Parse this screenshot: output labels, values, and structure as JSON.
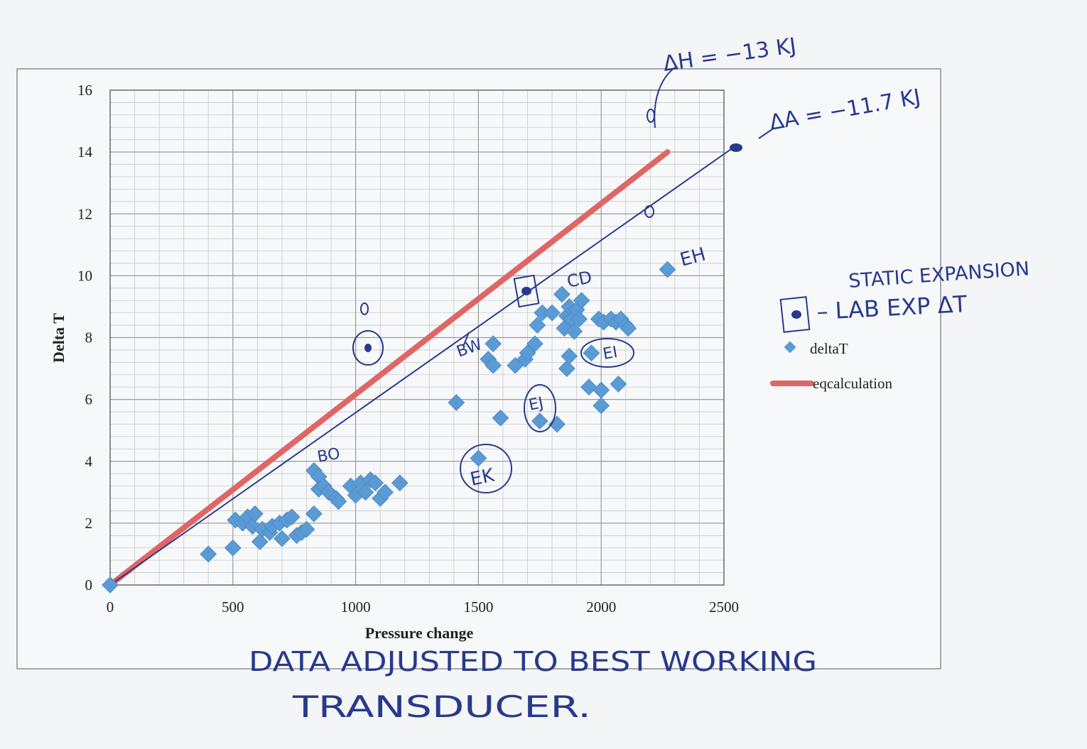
{
  "chart_data": {
    "type": "scatter",
    "xlabel": "Pressure change",
    "ylabel": "Delta T",
    "xlim": [
      0,
      2500
    ],
    "ylim": [
      0,
      16
    ],
    "x_ticks": [
      0,
      500,
      1000,
      1500,
      2000,
      2500
    ],
    "y_ticks": [
      0,
      2,
      4,
      6,
      8,
      10,
      12,
      14,
      16
    ],
    "grid": true,
    "legend_position": "right",
    "legend": [
      {
        "label": "deltaT",
        "marker": "diamond"
      },
      {
        "label": "eqcalculation",
        "marker": "line"
      }
    ],
    "series": [
      {
        "name": "deltaT",
        "type": "scatter",
        "points": [
          [
            0,
            0
          ],
          [
            400,
            1.0
          ],
          [
            500,
            1.2
          ],
          [
            510,
            2.1
          ],
          [
            540,
            2.0
          ],
          [
            560,
            2.2
          ],
          [
            580,
            1.9
          ],
          [
            590,
            2.3
          ],
          [
            610,
            1.4
          ],
          [
            620,
            1.8
          ],
          [
            650,
            1.7
          ],
          [
            660,
            1.9
          ],
          [
            690,
            2.0
          ],
          [
            700,
            1.5
          ],
          [
            720,
            2.1
          ],
          [
            740,
            2.2
          ],
          [
            760,
            1.6
          ],
          [
            780,
            1.7
          ],
          [
            800,
            1.8
          ],
          [
            830,
            2.3
          ],
          [
            830,
            3.7
          ],
          [
            850,
            3.5
          ],
          [
            850,
            3.1
          ],
          [
            870,
            3.2
          ],
          [
            890,
            3.0
          ],
          [
            920,
            2.8
          ],
          [
            930,
            2.7
          ],
          [
            980,
            3.2
          ],
          [
            1000,
            2.9
          ],
          [
            1020,
            3.3
          ],
          [
            1040,
            3.0
          ],
          [
            1060,
            3.4
          ],
          [
            1080,
            3.3
          ],
          [
            1100,
            2.8
          ],
          [
            1120,
            3.0
          ],
          [
            1180,
            3.3
          ],
          [
            1410,
            5.9
          ],
          [
            1500,
            4.1
          ],
          [
            1540,
            7.3
          ],
          [
            1560,
            7.8
          ],
          [
            1560,
            7.1
          ],
          [
            1590,
            5.4
          ],
          [
            1650,
            7.1
          ],
          [
            1690,
            7.3
          ],
          [
            1700,
            7.5
          ],
          [
            1730,
            7.8
          ],
          [
            1740,
            8.4
          ],
          [
            1750,
            5.3
          ],
          [
            1760,
            8.8
          ],
          [
            1800,
            8.8
          ],
          [
            1820,
            5.2
          ],
          [
            1840,
            9.4
          ],
          [
            1850,
            8.3
          ],
          [
            1860,
            7.0
          ],
          [
            1860,
            8.7
          ],
          [
            1870,
            7.4
          ],
          [
            1870,
            9.0
          ],
          [
            1880,
            8.6
          ],
          [
            1890,
            8.2
          ],
          [
            1900,
            8.9
          ],
          [
            1910,
            8.6
          ],
          [
            1920,
            9.2
          ],
          [
            1950,
            6.4
          ],
          [
            1960,
            7.5
          ],
          [
            1990,
            8.6
          ],
          [
            2000,
            6.3
          ],
          [
            2000,
            5.8
          ],
          [
            2010,
            8.5
          ],
          [
            2040,
            8.6
          ],
          [
            2060,
            8.5
          ],
          [
            2070,
            6.5
          ],
          [
            2080,
            8.6
          ],
          [
            2100,
            8.4
          ],
          [
            2110,
            8.3
          ],
          [
            2270,
            10.2
          ]
        ]
      },
      {
        "name": "eqcalculation",
        "type": "line",
        "points": [
          [
            0,
            0
          ],
          [
            2270,
            14.0
          ]
        ]
      },
      {
        "name": "",
        "type": "line",
        "points": [
          [
            0,
            0
          ],
          [
            2530,
            14.1
          ]
        ]
      }
    ],
    "annotations": [
      {
        "text": "ΔH = −13 KJ",
        "x": 2230,
        "y": 15.3
      },
      {
        "text": "ΔA = −11.7 KJ",
        "x": 2620,
        "y": 14.6
      },
      {
        "text": "EH",
        "x": 2340,
        "y": 10.5
      },
      {
        "text": "CD",
        "x": 1960,
        "y": 9.7
      },
      {
        "text": "BW",
        "x": 1480,
        "y": 7.5
      },
      {
        "text": "EI",
        "x": 2060,
        "y": 7.4
      },
      {
        "text": "EJ",
        "x": 1740,
        "y": 5.9
      },
      {
        "text": "EK",
        "x": 1530,
        "y": 3.4
      },
      {
        "text": "BO",
        "x": 900,
        "y": 4.1
      },
      {
        "text": "0",
        "x": 1030,
        "y": 8.9
      },
      {
        "text": "STATIC EXPANSION",
        "x": 0,
        "y": 0
      },
      {
        "text": "– LAB EXP ΔT",
        "x": 0,
        "y": 0
      },
      {
        "text": "DATA ADJUSTED TO BEST WORKING",
        "x": 0,
        "y": 0
      },
      {
        "text": "TRANSDUCER.",
        "x": 0,
        "y": 0
      }
    ],
    "colors": {
      "deltaT": "#5b9bd5",
      "eqcalculation": "#e06666",
      "handwritten": "#283a8c"
    }
  }
}
